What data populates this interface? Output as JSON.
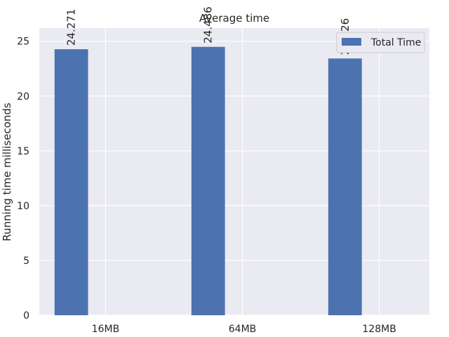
{
  "chart_data": {
    "type": "bar",
    "title": "Average time",
    "xlabel": "",
    "ylabel": "Running time milliseconds",
    "categories": [
      "16MB",
      "64MB",
      "128MB"
    ],
    "series": [
      {
        "name": "Total Time",
        "values": [
          24.271,
          24.486,
          23.426
        ],
        "color": "#4c72b0"
      }
    ],
    "data_labels": [
      "24.271",
      "24.486",
      "23.426"
    ],
    "ylim": [
      0,
      26.2
    ],
    "yticks": [
      0,
      5,
      10,
      15,
      20,
      25
    ],
    "grid": true,
    "legend": "top-right",
    "background": "#eaeaf2",
    "grid_color": "#ffffff"
  }
}
